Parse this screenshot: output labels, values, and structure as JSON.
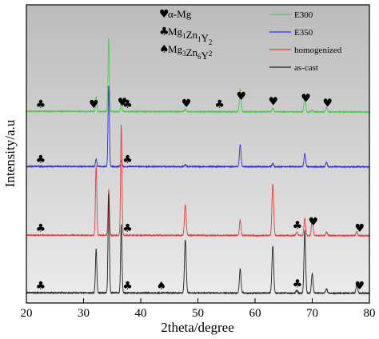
{
  "chart_data": {
    "type": "line",
    "xlabel": "2theta/degree",
    "ylabel": "Intensity/a.u",
    "xlim": [
      20,
      80
    ],
    "xticks": [
      20,
      30,
      40,
      50,
      60,
      70,
      80
    ],
    "grid": false,
    "legend_position": "top-right",
    "phase_legend": [
      {
        "icon": "heart",
        "text": "α-Mg",
        "parts": [
          [
            "α-Mg",
            0
          ]
        ]
      },
      {
        "icon": "club",
        "text": "Mg1Zn1Y2",
        "parts": [
          [
            "Mg",
            0
          ],
          [
            "1",
            1
          ],
          [
            "Zn",
            0
          ],
          [
            "1",
            1
          ],
          [
            "Y",
            0
          ],
          [
            "2",
            1
          ]
        ]
      },
      {
        "icon": "spade",
        "text": "Mg3Zn6Y2",
        "parts": [
          [
            "Mg",
            0
          ],
          [
            "3",
            1
          ],
          [
            "Zn",
            0
          ],
          [
            "6",
            1
          ],
          [
            "Y",
            0
          ],
          [
            "2",
            2
          ]
        ]
      }
    ],
    "series": [
      {
        "name": "E300",
        "color": "#4ec94e",
        "baseline": 0.03,
        "peaks": [
          [
            32.2,
            0.2,
            0.12
          ],
          [
            34.4,
            1.0,
            0.12
          ],
          [
            36.6,
            0.12,
            0.12
          ],
          [
            47.8,
            0.03,
            0.15
          ],
          [
            57.4,
            0.31,
            0.14
          ],
          [
            63.1,
            0.05,
            0.15
          ],
          [
            68.7,
            0.23,
            0.14
          ],
          [
            70.0,
            0.02,
            0.14
          ],
          [
            72.5,
            0.06,
            0.14
          ]
        ],
        "markers": [
          [
            22.5,
            "club"
          ],
          [
            31.8,
            "heart"
          ],
          [
            36.8,
            "heart"
          ],
          [
            37.7,
            "club"
          ],
          [
            48.0,
            "heart"
          ],
          [
            53.8,
            "club"
          ],
          [
            57.6,
            "heart"
          ],
          [
            63.2,
            "heart"
          ],
          [
            68.9,
            "heart"
          ],
          [
            72.7,
            "heart"
          ]
        ]
      },
      {
        "name": "E350",
        "color": "#3333cc",
        "baseline": 0.02,
        "peaks": [
          [
            32.2,
            0.1,
            0.12
          ],
          [
            34.4,
            1.1,
            0.12
          ],
          [
            36.6,
            0.08,
            0.12
          ],
          [
            47.8,
            0.02,
            0.15
          ],
          [
            57.4,
            0.3,
            0.14
          ],
          [
            63.1,
            0.04,
            0.15
          ],
          [
            68.7,
            0.18,
            0.14
          ],
          [
            72.5,
            0.06,
            0.14
          ]
        ],
        "markers": [
          [
            22.5,
            "club"
          ],
          [
            37.7,
            "club"
          ]
        ]
      },
      {
        "name": "homogenized",
        "color": "#e04040",
        "baseline": 0.02,
        "peaks": [
          [
            32.2,
            0.95,
            0.12
          ],
          [
            34.4,
            0.62,
            0.12
          ],
          [
            36.6,
            1.5,
            0.12
          ],
          [
            47.8,
            0.42,
            0.15
          ],
          [
            57.4,
            0.21,
            0.14
          ],
          [
            63.1,
            0.7,
            0.15
          ],
          [
            67.3,
            0.05,
            0.14
          ],
          [
            68.7,
            0.23,
            0.14
          ],
          [
            70.0,
            0.24,
            0.14
          ],
          [
            72.5,
            0.05,
            0.14
          ],
          [
            77.8,
            0.05,
            0.14
          ]
        ],
        "markers": [
          [
            22.5,
            "club"
          ],
          [
            37.7,
            "club"
          ],
          [
            67.4,
            "club"
          ],
          [
            70.2,
            "heart"
          ],
          [
            78.3,
            "heart"
          ]
        ]
      },
      {
        "name": "as-cast",
        "color": "#222222",
        "baseline": 0.02,
        "peaks": [
          [
            32.2,
            0.6,
            0.12
          ],
          [
            34.4,
            1.35,
            0.12
          ],
          [
            36.6,
            0.93,
            0.12
          ],
          [
            47.8,
            0.72,
            0.15
          ],
          [
            57.4,
            0.33,
            0.14
          ],
          [
            63.1,
            0.64,
            0.15
          ],
          [
            67.3,
            0.04,
            0.14
          ],
          [
            68.7,
            0.85,
            0.14
          ],
          [
            70.0,
            0.27,
            0.14
          ],
          [
            72.5,
            0.06,
            0.14
          ],
          [
            77.8,
            0.12,
            0.14
          ]
        ],
        "markers": [
          [
            22.5,
            "club"
          ],
          [
            37.7,
            "club"
          ],
          [
            43.6,
            "spade"
          ],
          [
            67.4,
            "club"
          ],
          [
            78.3,
            "heart"
          ]
        ]
      }
    ]
  },
  "icons": {
    "heart": "♥",
    "club": "♣",
    "spade": "♠"
  }
}
